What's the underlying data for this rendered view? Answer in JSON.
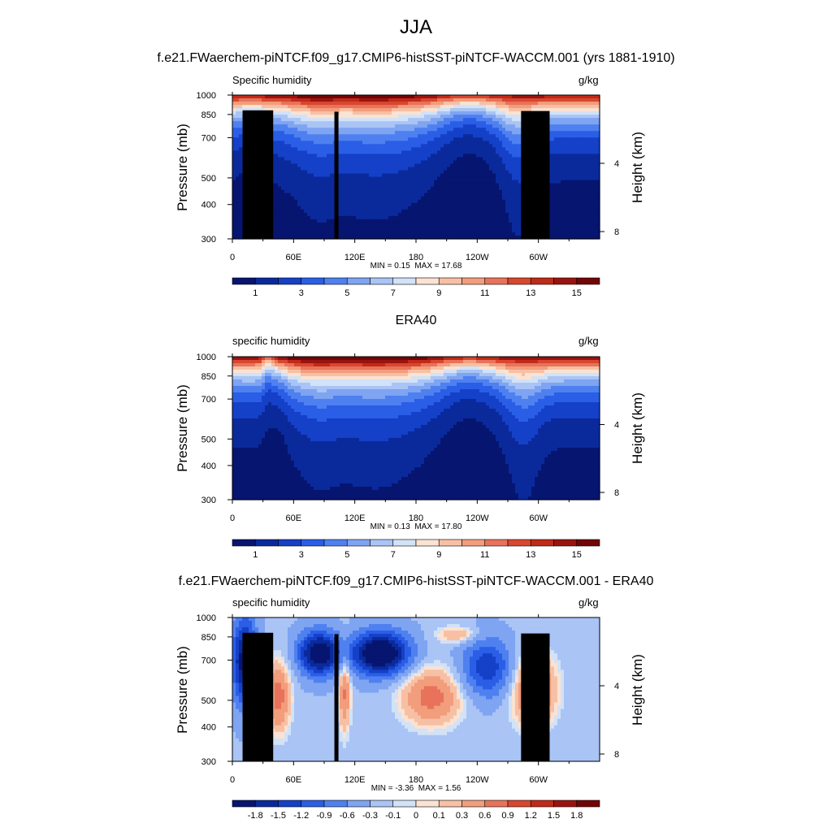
{
  "page": {
    "title": "JJA"
  },
  "chart_data": [
    {
      "type": "heatmap",
      "subtitle": "f.e21.FWaerchem-piNTCF.f09_g17.CMIP6-histSST-piNTCF-WACCM.001 (yrs 1881-1910)",
      "variable": "Specific humidity",
      "units": "g/kg",
      "ylabel": "Pressure (mb)",
      "ylabel_right": "Height (km)",
      "xticks": [
        "0",
        "60E",
        "120E",
        "180",
        "120W",
        "60W"
      ],
      "xtick_lon": [
        0,
        60,
        120,
        180,
        240,
        300
      ],
      "xlim": [
        0,
        360
      ],
      "yticks": [
        "300",
        "400",
        "500",
        "700",
        "850",
        "1000"
      ],
      "ytick_p": [
        300,
        400,
        500,
        700,
        850,
        1000
      ],
      "ylim": [
        1000,
        300
      ],
      "right_ticks": [
        "8",
        "4"
      ],
      "right_tick_km": [
        8,
        4
      ],
      "min_label": "MIN = 0.15",
      "max_label": "MAX = 17.68",
      "colorbar_labels": [
        "1",
        "3",
        "5",
        "7",
        "9",
        "11",
        "13",
        "15"
      ],
      "colorbar_colors": [
        "#061570",
        "#0a2a9c",
        "#1540c8",
        "#2b5ee6",
        "#4f80f0",
        "#7ea4f2",
        "#a9c4f5",
        "#d2e2f7",
        "#fbe2d2",
        "#f7c0a4",
        "#f29d7c",
        "#e8735a",
        "#d8472f",
        "#c02a18",
        "#991410",
        "#720506"
      ],
      "field": "humidity",
      "terrain": true
    },
    {
      "type": "heatmap",
      "subtitle": "ERA40",
      "variable": "specific humidity",
      "units": "g/kg",
      "ylabel": "Pressure (mb)",
      "ylabel_right": "Height (km)",
      "xticks": [
        "0",
        "60E",
        "120E",
        "180",
        "120W",
        "60W"
      ],
      "xtick_lon": [
        0,
        60,
        120,
        180,
        240,
        300
      ],
      "xlim": [
        0,
        360
      ],
      "yticks": [
        "300",
        "400",
        "500",
        "700",
        "850",
        "1000"
      ],
      "ytick_p": [
        300,
        400,
        500,
        700,
        850,
        1000
      ],
      "ylim": [
        1000,
        300
      ],
      "right_ticks": [
        "8",
        "4"
      ],
      "right_tick_km": [
        8,
        4
      ],
      "min_label": "MIN = 0.13",
      "max_label": "MAX = 17.80",
      "colorbar_labels": [
        "1",
        "3",
        "5",
        "7",
        "9",
        "11",
        "13",
        "15"
      ],
      "colorbar_colors": [
        "#061570",
        "#0a2a9c",
        "#1540c8",
        "#2b5ee6",
        "#4f80f0",
        "#7ea4f2",
        "#a9c4f5",
        "#d2e2f7",
        "#fbe2d2",
        "#f7c0a4",
        "#f29d7c",
        "#e8735a",
        "#d8472f",
        "#c02a18",
        "#991410",
        "#720506"
      ],
      "field": "humidity_obs",
      "terrain": false
    },
    {
      "type": "heatmap",
      "subtitle": "f.e21.FWaerchem-piNTCF.f09_g17.CMIP6-histSST-piNTCF-WACCM.001 - ERA40",
      "variable": "specific humidity",
      "units": "g/kg",
      "ylabel": "Pressure (mb)",
      "ylabel_right": "Height (km)",
      "xticks": [
        "0",
        "60E",
        "120E",
        "180",
        "120W",
        "60W"
      ],
      "xtick_lon": [
        0,
        60,
        120,
        180,
        240,
        300
      ],
      "xlim": [
        0,
        360
      ],
      "yticks": [
        "300",
        "400",
        "500",
        "700",
        "850",
        "1000"
      ],
      "ytick_p": [
        300,
        400,
        500,
        700,
        850,
        1000
      ],
      "ylim": [
        1000,
        300
      ],
      "right_ticks": [
        "8",
        "4"
      ],
      "right_tick_km": [
        8,
        4
      ],
      "min_label": "MIN = -3.36",
      "max_label": "MAX = 1.56",
      "colorbar_labels": [
        "-1.8",
        "-1.5",
        "-1.2",
        "-0.9",
        "-0.6",
        "-0.3",
        "-0.1",
        "0",
        "0.1",
        "0.3",
        "0.6",
        "0.9",
        "1.2",
        "1.5",
        "1.8"
      ],
      "colorbar_colors": [
        "#061570",
        "#0a2a9c",
        "#1540c8",
        "#2b5ee6",
        "#4f80f0",
        "#7ea4f2",
        "#a9c4f5",
        "#d2e2f7",
        "#fbe2d2",
        "#f7c0a4",
        "#f29d7c",
        "#e8735a",
        "#d8472f",
        "#c02a18",
        "#991410",
        "#720506"
      ],
      "field": "difference",
      "terrain": true
    }
  ]
}
